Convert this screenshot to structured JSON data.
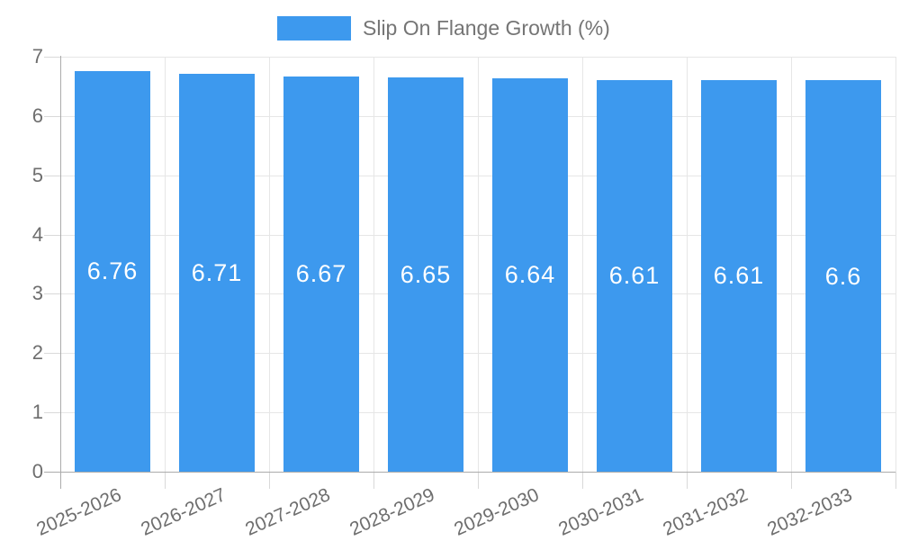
{
  "chart_data": {
    "type": "bar",
    "title": "Slip On Flange Growth (%)",
    "categories": [
      "2025-2026",
      "2026-2027",
      "2027-2028",
      "2028-2029",
      "2029-2030",
      "2030-2031",
      "2031-2032",
      "2032-2033"
    ],
    "values": [
      6.76,
      6.71,
      6.67,
      6.65,
      6.64,
      6.61,
      6.61,
      6.6
    ],
    "value_labels": [
      "6.76",
      "6.71",
      "6.67",
      "6.65",
      "6.64",
      "6.61",
      "6.61",
      "6.6"
    ],
    "xlabel": "",
    "ylabel": "",
    "ylim": [
      0,
      7
    ],
    "yticks": [
      0,
      1,
      2,
      3,
      4,
      5,
      6,
      7
    ],
    "ytick_labels": [
      "0",
      "1",
      "2",
      "3",
      "4",
      "5",
      "6",
      "7"
    ],
    "grid": true,
    "legend_position": "top-center",
    "colors": {
      "bar": "#3d99ee",
      "grid": "#e6e6e6",
      "tick": "#d9d9d9",
      "axis": "#ababab",
      "axis_text": "#6e6e6e",
      "legend_text": "#757575",
      "bar_label_text": "#ffffff",
      "background": "#ffffff"
    }
  }
}
